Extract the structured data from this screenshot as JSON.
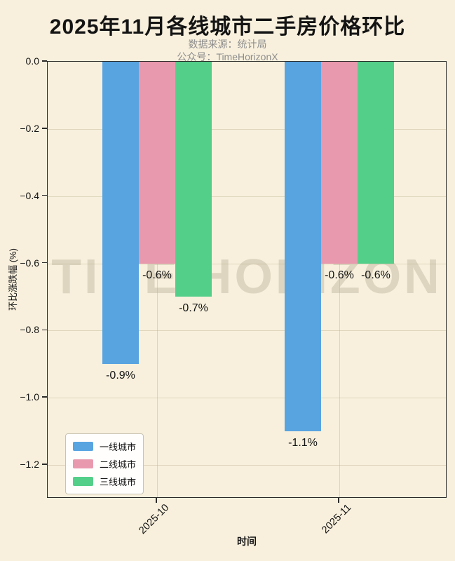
{
  "header": {
    "title": "2025年11月各线城市二手房价格环比",
    "subtitle1": "数据来源：统计局",
    "subtitle2": "公众号：TimeHorizonX"
  },
  "chart_data": {
    "type": "bar",
    "title": "2025年11月各线城市二手房价格环比",
    "categories": [
      "2025-10",
      "2025-11"
    ],
    "series": [
      {
        "name": "一线城市",
        "color": "#58A4E1",
        "values": [
          -0.9,
          -1.1
        ],
        "labels": [
          "-0.9%",
          "-1.1%"
        ]
      },
      {
        "name": "二线城市",
        "color": "#E999AE",
        "values": [
          -0.6,
          -0.6
        ],
        "labels": [
          "-0.6%",
          "-0.6%"
        ]
      },
      {
        "name": "三线城市",
        "color": "#54CF8A",
        "values": [
          -0.7,
          -0.6
        ],
        "labels": [
          "-0.7%",
          "-0.6%"
        ]
      }
    ],
    "xlabel": "时间",
    "ylabel": "环比涨跌幅 (%)",
    "ylim": [
      -1.3,
      0
    ],
    "yticks": [
      0.0,
      -0.2,
      -0.4,
      -0.6,
      -0.8,
      -1.0,
      -1.2
    ],
    "ytick_labels": [
      "0.0",
      "−0.2",
      "−0.4",
      "−0.6",
      "−0.8",
      "−1.0",
      "−1.2"
    ],
    "grid": true,
    "legend_position": "lower left",
    "watermark": "TIME HORIZON",
    "background_color": "#F8F0DD",
    "axis_color": "#2A2A28"
  }
}
